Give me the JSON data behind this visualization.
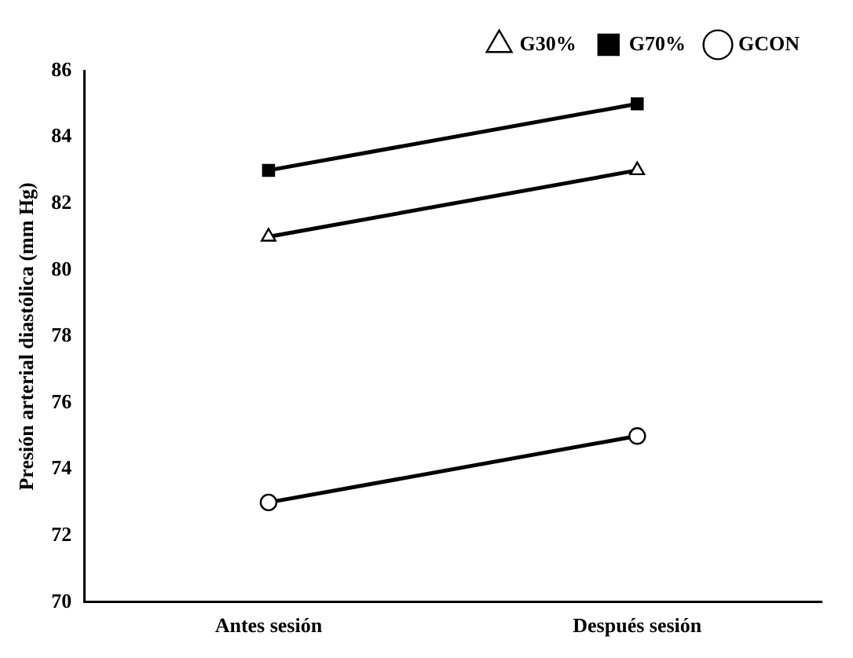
{
  "chart_data": {
    "type": "line",
    "ylabel": "Presión arterial diastólica (mm Hg)",
    "categories": [
      "Antes sesión",
      "Después sesión"
    ],
    "series": [
      {
        "name": "G30%",
        "color": "#000000",
        "marker": "triangle",
        "values": [
          81,
          83
        ]
      },
      {
        "name": "G70%",
        "color": "#000000",
        "marker": "square",
        "values": [
          83,
          85
        ]
      },
      {
        "name": "GCON",
        "color": "#000000",
        "marker": "circle",
        "values": [
          73,
          75
        ]
      }
    ],
    "ylim": [
      70,
      86
    ],
    "yticks": [
      70,
      72,
      74,
      76,
      78,
      80,
      82,
      84,
      86
    ],
    "grid": false,
    "legend": "top",
    "line_style": "solid"
  }
}
